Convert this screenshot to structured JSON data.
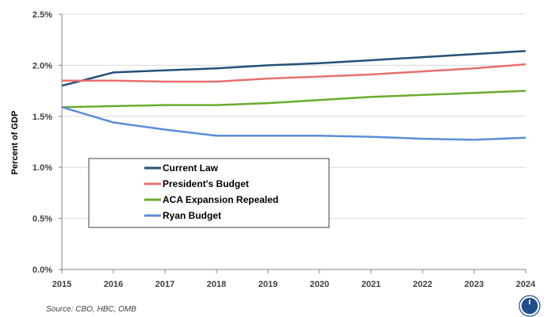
{
  "chart_data": {
    "type": "line",
    "title": "",
    "xlabel": "",
    "ylabel": "Percent of GDP",
    "x": [
      2015,
      2016,
      2017,
      2018,
      2019,
      2020,
      2021,
      2022,
      2023,
      2024
    ],
    "ylim": [
      0,
      2.5
    ],
    "yticks": [
      "0.0%",
      "0.5%",
      "1.0%",
      "1.5%",
      "2.0%",
      "2.5%"
    ],
    "grid": "horizontal",
    "legend_position": "inside-lower-left",
    "series": [
      {
        "name": "Current Law",
        "color": "#25507a",
        "values": [
          1.8,
          1.93,
          1.95,
          1.97,
          2.0,
          2.02,
          2.05,
          2.08,
          2.11,
          2.14
        ]
      },
      {
        "name": "President's Budget",
        "color": "#e8706e",
        "values": [
          1.85,
          1.85,
          1.84,
          1.84,
          1.87,
          1.89,
          1.91,
          1.94,
          1.97,
          2.01
        ]
      },
      {
        "name": "ACA Expansion Repealed",
        "color": "#6aab2e",
        "values": [
          1.59,
          1.6,
          1.61,
          1.61,
          1.63,
          1.66,
          1.69,
          1.71,
          1.73,
          1.75
        ]
      },
      {
        "name": "Ryan Budget",
        "color": "#5b8ed8",
        "values": [
          1.59,
          1.44,
          1.37,
          1.31,
          1.31,
          1.31,
          1.3,
          1.28,
          1.27,
          1.29
        ]
      }
    ]
  },
  "source": "Source: CBO, HBC, OMB"
}
